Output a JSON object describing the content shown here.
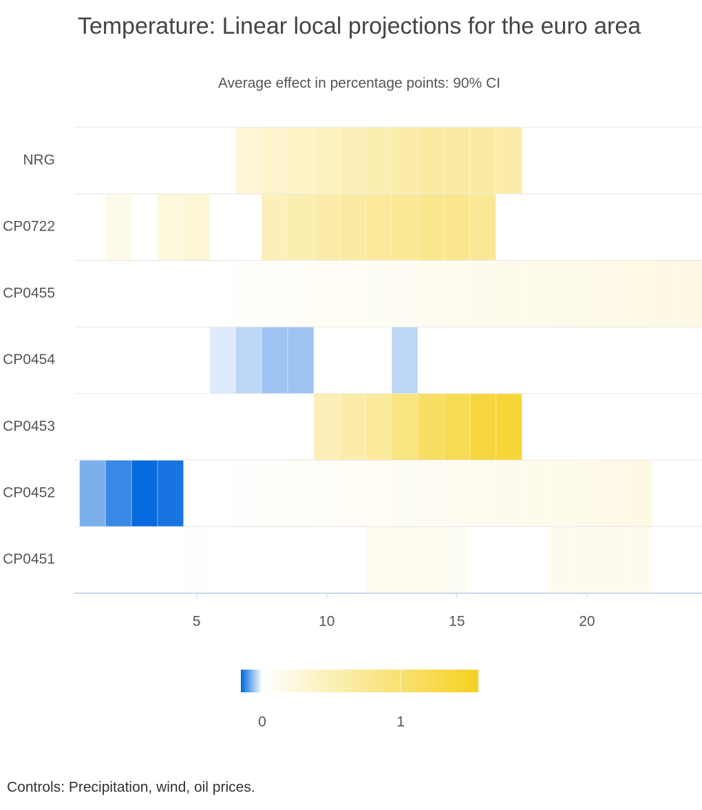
{
  "chart_data": {
    "type": "heatmap",
    "title": "Temperature: Linear local projections for the euro area",
    "subtitle": "Average effect in percentage points: 90% CI",
    "footer": "Controls: Precipitation, wind, oil prices.",
    "categories": [
      "NRG",
      "CP0722",
      "CP0455",
      "CP0454",
      "CP0453",
      "CP0452",
      "CP0451"
    ],
    "x": [
      1,
      2,
      3,
      4,
      5,
      6,
      7,
      8,
      9,
      10,
      11,
      12,
      13,
      14,
      15,
      16,
      17,
      18,
      19,
      20,
      21,
      22,
      23,
      24
    ],
    "values": [
      [
        null,
        null,
        null,
        null,
        null,
        null,
        0.3,
        0.35,
        0.4,
        0.45,
        0.5,
        0.55,
        0.6,
        0.65,
        0.65,
        0.65,
        0.6,
        null,
        null,
        null,
        null,
        null,
        null,
        null
      ],
      [
        null,
        0.15,
        null,
        0.25,
        0.3,
        null,
        null,
        0.5,
        0.55,
        0.6,
        0.65,
        0.7,
        0.75,
        0.8,
        0.8,
        0.75,
        null,
        null,
        null,
        null,
        null,
        null,
        null,
        null
      ],
      [
        null,
        null,
        null,
        null,
        null,
        null,
        0.03,
        0.04,
        0.05,
        0.06,
        0.07,
        0.08,
        0.09,
        0.1,
        0.11,
        0.12,
        0.13,
        0.14,
        0.15,
        0.16,
        0.17,
        0.18,
        0.19,
        0.2
      ],
      [
        null,
        null,
        null,
        null,
        null,
        -0.02,
        -0.04,
        -0.06,
        -0.06,
        null,
        null,
        null,
        -0.04,
        null,
        null,
        null,
        null,
        null,
        null,
        null,
        null,
        null,
        null,
        null
      ],
      [
        null,
        null,
        null,
        null,
        null,
        null,
        null,
        null,
        null,
        0.5,
        0.6,
        0.7,
        0.9,
        1.1,
        1.2,
        1.35,
        1.4,
        null,
        null,
        null,
        null,
        null,
        null,
        null
      ],
      [
        -0.08,
        -0.12,
        -0.15,
        -0.14,
        0.01,
        0.01,
        0.02,
        0.03,
        0.04,
        0.05,
        0.06,
        0.07,
        0.08,
        0.09,
        0.1,
        0.11,
        0.12,
        0.13,
        0.14,
        0.15,
        0.17,
        0.2,
        null,
        null
      ],
      [
        null,
        null,
        null,
        null,
        0.02,
        null,
        null,
        null,
        null,
        null,
        null,
        0.1,
        0.1,
        0.1,
        0.08,
        null,
        null,
        null,
        0.12,
        0.12,
        0.12,
        0.12,
        null,
        null
      ]
    ],
    "xlim": [
      0.3,
      24.42
    ],
    "xticks": [
      5,
      10,
      15,
      20
    ],
    "zlim": [
      -0.154,
      1.56
    ],
    "zticks": [
      0,
      1
    ],
    "colorscale": [
      "#0066dd",
      "#ffffff",
      "#f5d020"
    ]
  }
}
